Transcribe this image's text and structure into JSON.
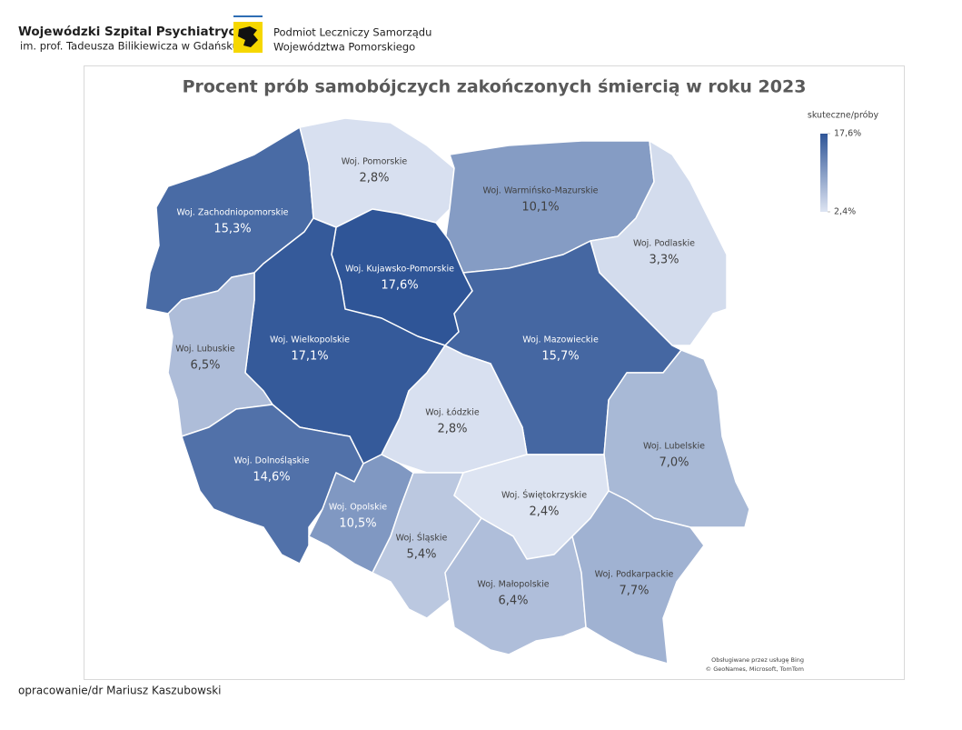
{
  "header": {
    "org_name": "Wojewódzki Szpital Psychiatryczny",
    "org_subname": "im. prof. Tadeusza Bilikiewicza w Gdańsku",
    "owner_line1": "Podmiot Leczniczy Samorządu",
    "owner_line2": "Województwa Pomorskiego"
  },
  "chart_data": {
    "type": "choropleth",
    "title": "Procent prób samobójczych zakończonych śmiercią w roku 2023",
    "categories": [
      "Woj. Zachodniopomorskie",
      "Woj. Pomorskie",
      "Woj. Warmińsko-Mazurskie",
      "Woj. Podlaskie",
      "Woj. Kujawsko-Pomorskie",
      "Woj. Wielkopolskie",
      "Woj. Lubuskie",
      "Woj. Mazowieckie",
      "Woj. Łódzkie",
      "Woj. Lubelskie",
      "Woj. Dolnośląskie",
      "Woj. Opolskie",
      "Woj. Śląskie",
      "Woj. Świętokrzyskie",
      "Woj. Małopolskie",
      "Woj. Podkarpackie"
    ],
    "values": [
      15.3,
      2.8,
      10.1,
      3.3,
      17.6,
      17.1,
      6.5,
      15.7,
      2.8,
      7.0,
      14.6,
      10.5,
      5.4,
      2.4,
      6.4,
      7.7
    ],
    "value_labels": [
      "15,3%",
      "2,8%",
      "10,1%",
      "3,3%",
      "17,6%",
      "17,1%",
      "6,5%",
      "15,7%",
      "2,8%",
      "7,0%",
      "14,6%",
      "10,5%",
      "5,4%",
      "2,4%",
      "6,4%",
      "7,7%"
    ],
    "legend_title": "skuteczne/próby",
    "colorlim": [
      2.4,
      17.6
    ],
    "colorticks": [
      {
        "value": 17.6,
        "label": "17,6%"
      },
      {
        "value": 2.4,
        "label": "2,4%"
      }
    ],
    "colorscale": [
      "#dde4f2",
      "#2f5597"
    ],
    "attribution": [
      "Obsługiwane przez usługę Bing",
      "© GeoNames, Microsoft, TomTom"
    ]
  },
  "footer": {
    "author": "opracowanie/dr Mariusz Kaszubowski"
  }
}
